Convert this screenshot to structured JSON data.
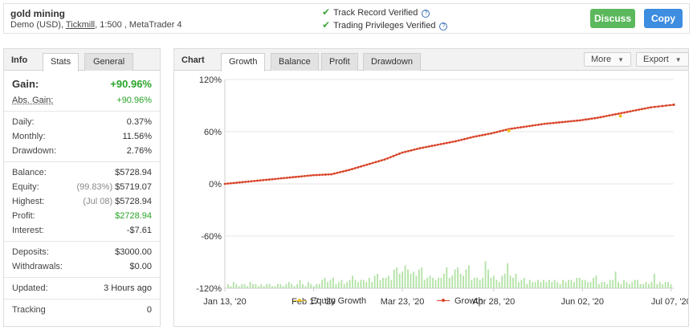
{
  "account": {
    "name": "gold mining",
    "type": "Demo (USD),",
    "broker": "Tickmill",
    "details": ", 1:500 , MetaTrader 4"
  },
  "verifications": [
    {
      "label": "Track Record Verified"
    },
    {
      "label": "Trading Privileges Verified"
    }
  ],
  "actions": {
    "discuss": "Discuss",
    "copy": "Copy"
  },
  "info": {
    "title": "Info",
    "tabs": [
      {
        "label": "Stats",
        "active": true
      },
      {
        "label": "General",
        "active": false
      }
    ],
    "gain": {
      "label": "Gain:",
      "value": "+90.96%"
    },
    "abs_gain": {
      "label": "Abs. Gain:",
      "value": "+90.96%"
    },
    "daily": {
      "label": "Daily:",
      "value": "0.37%"
    },
    "monthly": {
      "label": "Monthly:",
      "value": "11.56%"
    },
    "drawdown": {
      "label": "Drawdown:",
      "value": "2.76%"
    },
    "balance": {
      "label": "Balance:",
      "value": "$5728.94"
    },
    "equity": {
      "label": "Equity:",
      "note": "(99.83%)",
      "value": "$5719.07"
    },
    "highest": {
      "label": "Highest:",
      "note": "(Jul 08)",
      "value": "$5728.94"
    },
    "profit": {
      "label": "Profit:",
      "value": "$2728.94"
    },
    "interest": {
      "label": "Interest:",
      "value": "-$7.61"
    },
    "deposits": {
      "label": "Deposits:",
      "value": "$3000.00"
    },
    "withdrawals": {
      "label": "Withdrawals:",
      "value": "$0.00"
    },
    "updated": {
      "label": "Updated:",
      "value": "3 Hours ago"
    },
    "tracking": {
      "label": "Tracking",
      "value": "0"
    }
  },
  "chart_panel": {
    "title": "Chart",
    "tabs": [
      {
        "label": "Growth",
        "active": true
      },
      {
        "label": "Balance",
        "active": false
      },
      {
        "label": "Profit",
        "active": false
      },
      {
        "label": "Drawdown",
        "active": false
      }
    ],
    "more_label": "More",
    "export_label": "Export"
  },
  "chart_data": {
    "type": "line",
    "x_ticks": [
      "Jan 13, '20",
      "Feb 17, '20",
      "Mar 23, '20",
      "Apr 28, '20",
      "Jun 02, '20",
      "Jul 07, '20"
    ],
    "y_ticks": [
      "120%",
      "60%",
      "0%",
      "-60%",
      "-120%"
    ],
    "ylim": [
      -120,
      120
    ],
    "xlim": [
      "2020-01-13",
      "2020-07-08"
    ],
    "grid": true,
    "legend_position": "bottom",
    "series": [
      {
        "name": "Equity Growth",
        "color": "#f0c020",
        "dates": [
          "2020-05-04",
          "2020-06-17"
        ],
        "values": [
          61,
          78
        ]
      },
      {
        "name": "Growth",
        "color": "#d9452b",
        "dates": [
          "2020-01-13",
          "2020-01-20",
          "2020-01-27",
          "2020-02-03",
          "2020-02-10",
          "2020-02-17",
          "2020-02-24",
          "2020-03-02",
          "2020-03-09",
          "2020-03-16",
          "2020-03-23",
          "2020-03-30",
          "2020-04-06",
          "2020-04-13",
          "2020-04-20",
          "2020-04-27",
          "2020-05-04",
          "2020-05-11",
          "2020-05-18",
          "2020-05-25",
          "2020-06-01",
          "2020-06-08",
          "2020-06-15",
          "2020-06-22",
          "2020-06-29",
          "2020-07-08"
        ],
        "values": [
          0,
          2,
          4,
          6,
          8,
          10,
          11,
          16,
          22,
          28,
          36,
          41,
          45,
          49,
          54,
          58,
          63,
          66,
          69,
          71,
          73,
          76,
          80,
          84,
          88,
          90.96
        ]
      }
    ],
    "volume_bars": {
      "color": "#b5e3a8",
      "values": [
        2,
        1,
        3,
        2,
        1,
        2,
        2,
        1,
        3,
        2,
        2,
        1,
        2,
        1,
        2,
        2,
        1,
        1,
        2,
        2,
        1,
        2,
        3,
        2,
        1,
        2,
        4,
        2,
        1,
        3,
        2,
        1,
        2,
        2,
        4,
        5,
        3,
        4,
        5,
        2,
        3,
        4,
        2,
        3,
        4,
        6,
        4,
        3,
        4,
        4,
        3,
        5,
        3,
        6,
        7,
        4,
        5,
        5,
        6,
        4,
        9,
        10,
        7,
        8,
        11,
        9,
        7,
        8,
        6,
        9,
        10,
        4,
        5,
        6,
        5,
        4,
        5,
        5,
        7,
        10,
        5,
        6,
        9,
        10,
        7,
        6,
        9,
        11,
        4,
        5,
        5,
        4,
        5,
        13,
        9,
        5,
        6,
        4,
        3,
        6,
        7,
        12,
        6,
        5,
        7,
        3,
        4,
        5,
        2,
        4,
        3,
        3,
        4,
        3,
        4,
        3,
        4,
        3,
        4,
        3,
        2,
        4,
        3,
        4,
        4,
        3,
        5,
        5,
        4,
        4,
        3,
        3,
        5,
        6,
        2,
        3,
        3,
        2,
        4,
        4,
        8,
        3,
        2,
        4,
        3,
        2,
        3,
        4,
        4,
        2,
        2,
        3,
        2,
        3,
        7,
        2,
        3,
        2,
        3,
        3,
        2
      ]
    }
  }
}
